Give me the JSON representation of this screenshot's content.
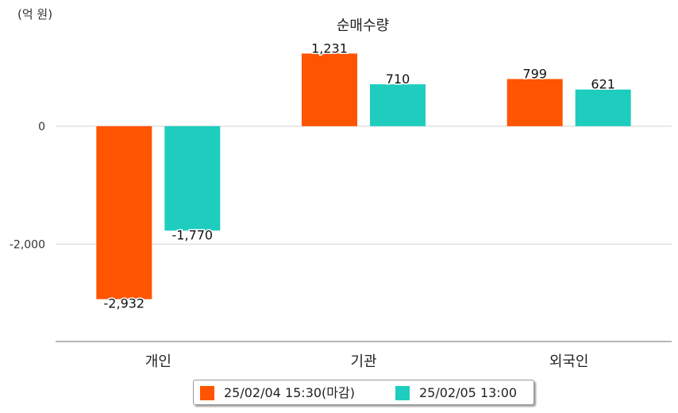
{
  "chart_data": {
    "type": "bar",
    "title": "순매수량",
    "unit_label": "(억 원)",
    "categories": [
      "개인",
      "기관",
      "외국인"
    ],
    "series": [
      {
        "name": "25/02/04 15:30(마감)",
        "color": "#ff5400",
        "values": [
          -2932,
          1231,
          799
        ],
        "labels": [
          "-2,932",
          "1,231",
          "799"
        ]
      },
      {
        "name": "25/02/05 13:00",
        "color": "#1ecdbd",
        "values": [
          -1770,
          710,
          621
        ],
        "labels": [
          "-1,770",
          "710",
          "621"
        ]
      }
    ],
    "y_ticks": [
      0,
      -2000
    ],
    "y_tick_labels": [
      "0",
      "-2,000"
    ],
    "ylim": [
      -3650,
      1600
    ],
    "grid": true,
    "legend_position": "bottom"
  }
}
